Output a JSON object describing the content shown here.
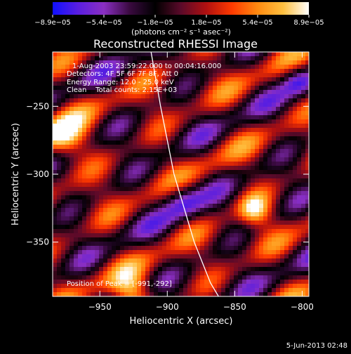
{
  "chart_data": {
    "type": "heatmap",
    "title": "Reconstructed RHESSI Image",
    "xlabel": "Heliocentric X (arcsec)",
    "ylabel": "Heliocentric Y (arcsec)",
    "xlim": [
      -985,
      -795
    ],
    "ylim": [
      -390,
      -210
    ],
    "x_ticks": [
      -950,
      -900,
      -850,
      -800
    ],
    "y_ticks": [
      -250,
      -300,
      -350
    ],
    "x_tick_labels": [
      "−950",
      "−900",
      "−850",
      "−800"
    ],
    "y_tick_labels": [
      "−250",
      "−300",
      "−350"
    ],
    "colorbar": {
      "min": -8.9e-05,
      "max": 8.9e-05,
      "tick_labels": [
        "−8.9e−05",
        "−5.4e−05",
        "−1.8e−05",
        "1.8e−05",
        "5.4e−05",
        "8.9e−05"
      ],
      "label": "(photons cm⁻² s⁻¹ asec⁻²)",
      "colors": [
        "#1010ff",
        "#5a1ee0",
        "#8a2fc2",
        "#3a0a40",
        "#000000",
        "#5a0a2a",
        "#b01010",
        "#ff3a00",
        "#ff8a10",
        "#ffc040",
        "#ffffff"
      ]
    },
    "annotations": [
      "1-Aug-2003 23:59:22.000 to 00:04:16.000",
      "Detectors: 4F 5F 6F 7F 8F, Att 0",
      "Energy Range: 12.0 - 25.0 keV",
      "Clean    Total counts: 2.15E+03"
    ],
    "peak_label": "Position of Peak = [-991,-292]",
    "limb": [
      [
        -912,
        -210
      ],
      [
        -905,
        -250
      ],
      [
        -895,
        -300
      ],
      [
        -880,
        -350
      ],
      [
        -868,
        -380
      ],
      [
        -862,
        -390
      ]
    ],
    "grid": false
  },
  "footer": {
    "date": "5-Jun-2013 02:48"
  }
}
